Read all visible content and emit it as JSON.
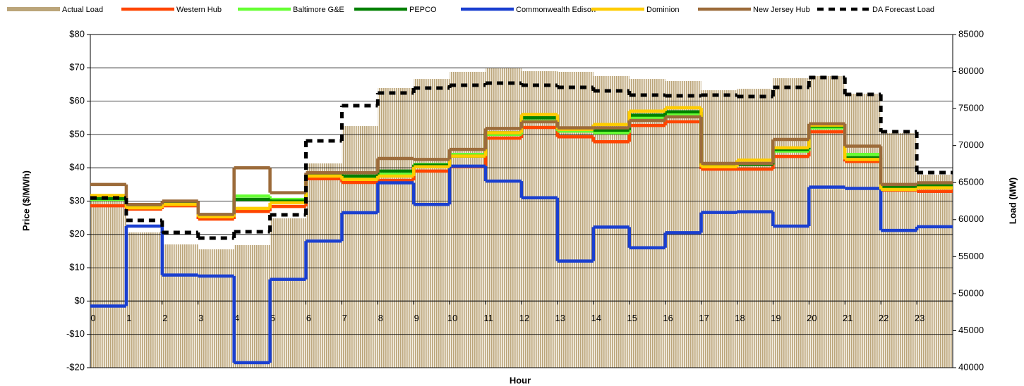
{
  "chart_data": {
    "type": "step-line-bar",
    "x_label": "Hour",
    "y_label": "Price ($/MWh)",
    "y2_label": "Load (MW)",
    "x": [
      0,
      1,
      2,
      3,
      4,
      5,
      6,
      7,
      8,
      9,
      10,
      11,
      12,
      13,
      14,
      15,
      16,
      17,
      18,
      19,
      20,
      21,
      22,
      23
    ],
    "xlim": [
      0,
      24
    ],
    "xticks": [
      0,
      1,
      2,
      3,
      4,
      5,
      6,
      7,
      8,
      9,
      10,
      11,
      12,
      13,
      14,
      15,
      16,
      17,
      18,
      19,
      20,
      21,
      22,
      23
    ],
    "ylim": [
      -20,
      80
    ],
    "yticks": [
      {
        "value": -20,
        "label": "-$20"
      },
      {
        "value": -10,
        "label": "-$10"
      },
      {
        "value": 0,
        "label": "$0"
      },
      {
        "value": 10,
        "label": "$10"
      },
      {
        "value": 20,
        "label": "$20"
      },
      {
        "value": 30,
        "label": "$30"
      },
      {
        "value": 40,
        "label": "$40"
      },
      {
        "value": 50,
        "label": "$50"
      },
      {
        "value": 60,
        "label": "$60"
      },
      {
        "value": 70,
        "label": "$70"
      },
      {
        "value": 80,
        "label": "$80"
      }
    ],
    "y2lim": [
      40000,
      85000
    ],
    "y2ticks": [
      40000,
      45000,
      50000,
      55000,
      60000,
      65000,
      70000,
      75000,
      80000,
      85000
    ],
    "grid": true,
    "series": [
      {
        "name": "Actual Load",
        "kind": "bar",
        "axis": "y2",
        "color": "#bba57a",
        "values": [
          62800,
          58270,
          56650,
          55990,
          56560,
          60170,
          67590,
          72630,
          77770,
          79000,
          79960,
          80430,
          80050,
          79960,
          79390,
          79000,
          78720,
          77480,
          77670,
          79100,
          79390,
          77000,
          71680,
          66070
        ]
      },
      {
        "name": "Western Hub",
        "color": "#ff4500",
        "values": [
          28.6,
          27.6,
          28.6,
          24.6,
          26.9,
          28.4,
          36.7,
          35.6,
          36.2,
          39.0,
          40.3,
          48.9,
          52.1,
          49.3,
          47.8,
          52.7,
          53.8,
          39.6,
          39.6,
          43.4,
          50.8,
          41.9,
          33.3,
          32.9
        ]
      },
      {
        "name": "Baltimore G&E",
        "color": "#66ff33",
        "values": [
          30.5,
          28.5,
          29.5,
          25.5,
          31.5,
          30.5,
          38,
          37,
          38,
          41,
          44,
          50,
          54,
          51,
          50.5,
          55,
          56,
          40.5,
          41,
          45,
          52,
          44,
          34.5,
          35
        ]
      },
      {
        "name": "PEPCO",
        "color": "#008000",
        "values": [
          30.8,
          28.5,
          29.5,
          25.5,
          30.5,
          30,
          38,
          37.5,
          39,
          40.8,
          43.5,
          50.5,
          55,
          51.5,
          51.3,
          55.8,
          56.8,
          40.8,
          41,
          45.5,
          52.5,
          43,
          34.3,
          34.8
        ]
      },
      {
        "name": "Commonwealth Edison",
        "color": "#1a3fd0",
        "values": [
          -1.5,
          22.5,
          7.8,
          7.5,
          -18.5,
          6.5,
          18,
          26.5,
          35.5,
          29,
          40.5,
          36,
          31,
          12,
          22.2,
          16,
          20.5,
          26.6,
          26.8,
          22.5,
          34.2,
          33.8,
          21.2,
          22.3
        ]
      },
      {
        "name": "Dominion",
        "color": "#ffcc00",
        "values": [
          31.7,
          28,
          29,
          25.3,
          27.8,
          29.5,
          37.5,
          36.5,
          37.5,
          40.3,
          43.5,
          50.5,
          56,
          51.5,
          53,
          57,
          58,
          40.3,
          42.3,
          46,
          52.8,
          42.5,
          33.5,
          34
        ]
      },
      {
        "name": "New Jersey Hub",
        "color": "#9c6b3a",
        "values": [
          35,
          29,
          30,
          26,
          40,
          32.5,
          38.5,
          38.5,
          42.8,
          42.5,
          45.5,
          51.8,
          53.8,
          52,
          52,
          54.2,
          55.3,
          41.3,
          41.3,
          48.5,
          53.2,
          46.5,
          35,
          35.5
        ]
      },
      {
        "name": "DA Forecast Load",
        "axis": "y2",
        "dashed": true,
        "color": "#000000",
        "values": [
          62930,
          59900,
          58270,
          57500,
          58360,
          60650,
          70640,
          75390,
          77100,
          77770,
          78150,
          78430,
          78150,
          77870,
          77390,
          76820,
          76720,
          76820,
          76630,
          77870,
          79200,
          76910,
          71870,
          66350
        ]
      }
    ]
  }
}
